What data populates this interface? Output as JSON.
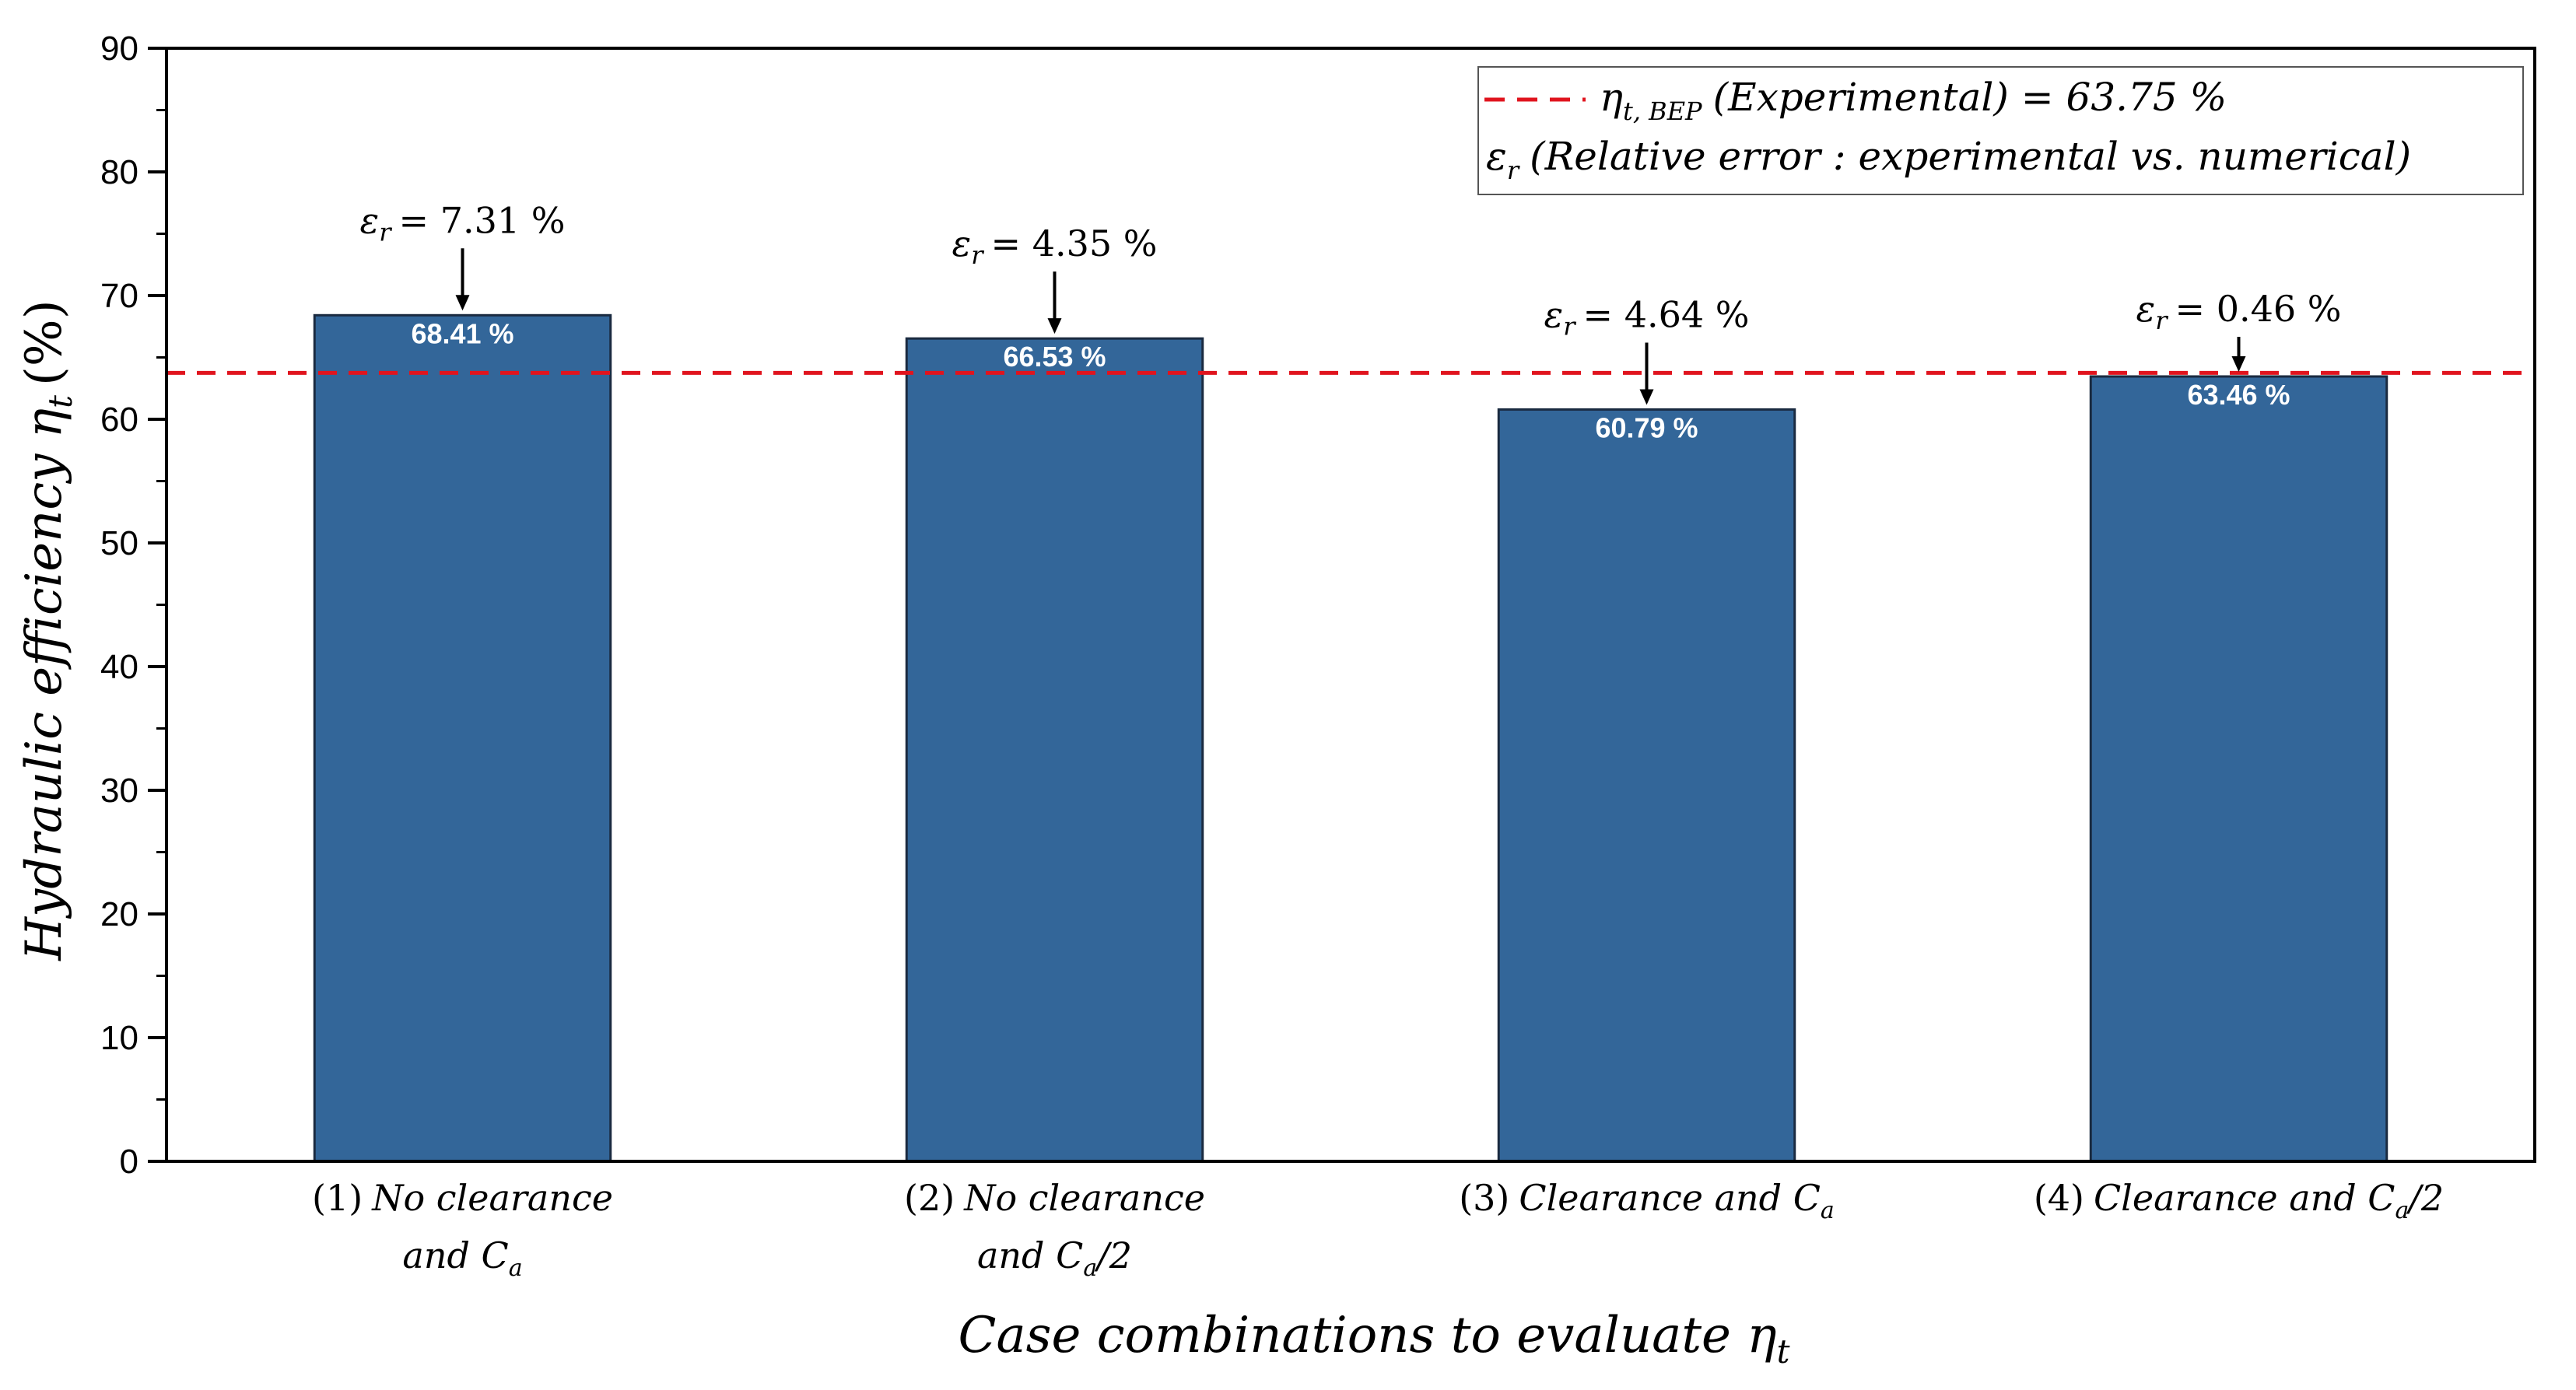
{
  "chart_data": {
    "type": "bar",
    "title": "",
    "xlabel": "Case combinations to evaluate η",
    "xlabel_sub": "t",
    "ylabel": "Hydraulic efficiency η",
    "ylabel_sub": "t",
    "ylabel_unit": "(%)",
    "ylim": [
      0,
      90
    ],
    "yticks": [
      "0",
      "10",
      "20",
      "30",
      "40",
      "50",
      "60",
      "70",
      "80",
      "90"
    ],
    "categories": [
      {
        "num": "(1)",
        "line1": "No clearance",
        "line2": "and C",
        "line2_sub": "a",
        "line2_tail": ""
      },
      {
        "num": "(2)",
        "line1": "No clearance",
        "line2": "and C",
        "line2_sub": "a",
        "line2_tail": "/2"
      },
      {
        "num": "(3)",
        "line1": "Clearance and C",
        "line1_sub": "a",
        "line1_tail": ""
      },
      {
        "num": "(4)",
        "line1": "Clearance and C",
        "line1_sub": "a",
        "line1_tail": "/2"
      }
    ],
    "values": [
      68.41,
      66.53,
      60.79,
      63.46
    ],
    "value_labels": [
      "68.41 %",
      "66.53 %",
      "60.79 %",
      "63.46 %"
    ],
    "relative_errors": [
      "7.31 %",
      "4.35 %",
      "4.64 %",
      "0.46 %"
    ],
    "error_symbol": "ε",
    "error_sub": "r",
    "reference_line": {
      "value": 63.75
    },
    "legend": {
      "entry1": {
        "symbol": "η",
        "sub": "t, BEP",
        "text": "(Experimental) = 63.75 %"
      },
      "entry2": {
        "symbol": "ε",
        "sub": "r",
        "text": "(Relative error :  experimental vs. numerical)"
      }
    },
    "colors": {
      "bar": "#336699",
      "bar_edge": "#1a2a40",
      "reference": "#e0141e",
      "text": "#000000"
    }
  }
}
